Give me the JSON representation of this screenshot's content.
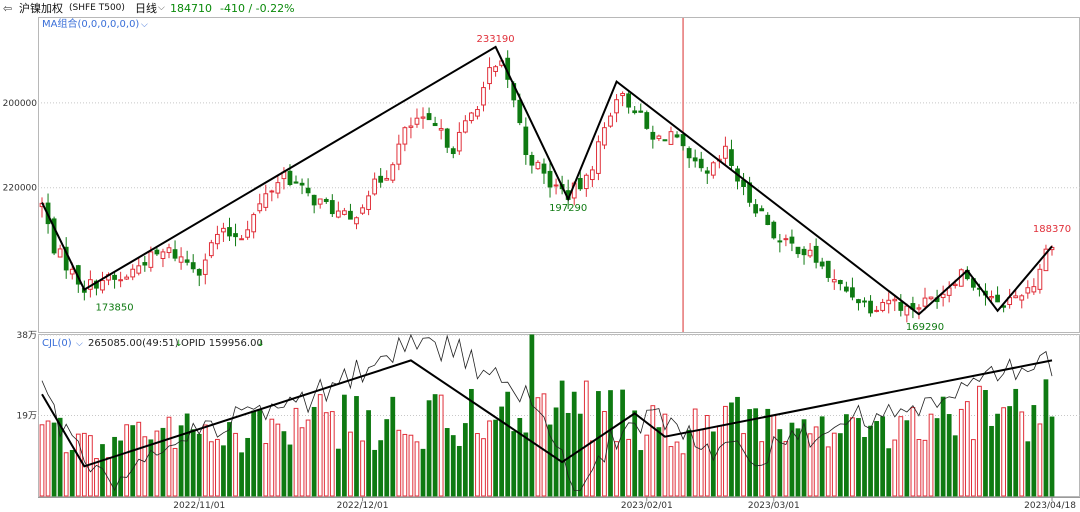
{
  "header": {
    "back_icon": "back-arrow-icon",
    "symbol_name": "沪镍加权",
    "symbol_code": "(SHFE T500)",
    "period": "日线",
    "period_dropdown_icon": "chevron-down-icon",
    "last_price": "184710",
    "change": "-410 / -0.22%"
  },
  "price_panel": {
    "indicator_label": "MA组合(0,0,0,0,0,0)",
    "y_ticks": [
      "220000",
      "200000"
    ]
  },
  "volume_panel": {
    "indicator_label": "CJL(0)",
    "volume_value": "265085.00(49:51)",
    "opid_value": "OPID 159956.00",
    "y_ticks": [
      "38万",
      "19万"
    ]
  },
  "x_axis": {
    "labels": [
      "2022/11/01",
      "2022/12/01",
      "2023/02/01",
      "2023/03/01",
      "2023/04/18"
    ]
  },
  "colors": {
    "up": "#e0303a",
    "down": "#0f7a12",
    "crosshair": "#e57373",
    "zigzag": "#000000",
    "grid": "#c8c8c8",
    "positive_text": "#0a8a0a",
    "negative_text": "#0a8a0a"
  },
  "chart_data": [
    {
      "type": "candlestick",
      "series_count": 168,
      "ylim": [
        166000,
        240000
      ],
      "y_ticks": [
        200000,
        220000
      ],
      "annotations": [
        {
          "text": "233190",
          "x_index": 75,
          "value": 233190,
          "position": "above"
        },
        {
          "text": "197290",
          "x_index": 87,
          "value": 197290,
          "position": "below"
        },
        {
          "text": "173850",
          "x_index": 12,
          "value": 173850,
          "position": "below"
        },
        {
          "text": "169290",
          "x_index": 146,
          "value": 169290,
          "position": "below"
        },
        {
          "text": "188370",
          "x_index": 167,
          "value": 188370,
          "position": "above"
        }
      ],
      "zigzag": [
        [
          0,
          196500
        ],
        [
          7,
          176000
        ],
        [
          75,
          233190
        ],
        [
          87,
          197290
        ],
        [
          95,
          225000
        ],
        [
          145,
          170200
        ],
        [
          153,
          180500
        ],
        [
          158,
          171000
        ],
        [
          167,
          186200
        ]
      ],
      "crosshair_index": 106,
      "x_tick_indices": [
        26,
        53,
        100,
        121,
        167
      ],
      "anchors": [
        [
          0,
          196000
        ],
        [
          2,
          186000
        ],
        [
          5,
          180000
        ],
        [
          7,
          176500
        ],
        [
          10,
          178500
        ],
        [
          13,
          178000
        ],
        [
          17,
          183000
        ],
        [
          21,
          185000
        ],
        [
          26,
          181000
        ],
        [
          29,
          189000
        ],
        [
          33,
          189000
        ],
        [
          37,
          198000
        ],
        [
          40,
          203500
        ],
        [
          44,
          198000
        ],
        [
          48,
          195000
        ],
        [
          51,
          192000
        ],
        [
          54,
          199000
        ],
        [
          57,
          203500
        ],
        [
          60,
          213000
        ],
        [
          62,
          216000
        ],
        [
          65,
          214000
        ],
        [
          68,
          209500
        ],
        [
          72,
          220000
        ],
        [
          74,
          227000
        ],
        [
          76,
          228500
        ],
        [
          78,
          221000
        ],
        [
          80,
          208500
        ],
        [
          84,
          201000
        ],
        [
          87,
          198500
        ],
        [
          90,
          201500
        ],
        [
          93,
          214000
        ],
        [
          95,
          222000
        ],
        [
          98,
          219000
        ],
        [
          101,
          211000
        ],
        [
          104,
          213000
        ],
        [
          107,
          206000
        ],
        [
          110,
          202500
        ],
        [
          113,
          208500
        ],
        [
          116,
          199000
        ],
        [
          119,
          194000
        ],
        [
          122,
          187000
        ],
        [
          125,
          186000
        ],
        [
          128,
          183000
        ],
        [
          131,
          177500
        ],
        [
          134,
          175000
        ],
        [
          137,
          172000
        ],
        [
          140,
          174000
        ],
        [
          143,
          171500
        ],
        [
          146,
          173000
        ],
        [
          149,
          175500
        ],
        [
          152,
          180500
        ],
        [
          155,
          176500
        ],
        [
          158,
          172000
        ],
        [
          161,
          174500
        ],
        [
          164,
          177500
        ],
        [
          166,
          185000
        ],
        [
          167,
          187500
        ]
      ]
    },
    {
      "type": "bar",
      "series_count": 168,
      "ylim": [
        0,
        380000
      ],
      "y_ticks": [
        190000,
        380000
      ],
      "volume_anchors": [
        [
          0,
          155000
        ],
        [
          8,
          140000
        ],
        [
          15,
          150000
        ],
        [
          25,
          165000
        ],
        [
          35,
          185000
        ],
        [
          45,
          200000
        ],
        [
          55,
          185000
        ],
        [
          65,
          195000
        ],
        [
          75,
          215000
        ],
        [
          85,
          240000
        ],
        [
          95,
          205000
        ],
        [
          105,
          160000
        ],
        [
          115,
          190000
        ],
        [
          125,
          175000
        ],
        [
          135,
          185000
        ],
        [
          145,
          195000
        ],
        [
          155,
          215000
        ],
        [
          167,
          235000
        ]
      ],
      "peak_bar": {
        "x_index": 81,
        "value": 380000
      },
      "oi_line_anchors": [
        [
          0,
          240000
        ],
        [
          5,
          120000
        ],
        [
          11,
          20000
        ],
        [
          20,
          120000
        ],
        [
          30,
          180000
        ],
        [
          42,
          210000
        ],
        [
          55,
          310000
        ],
        [
          62,
          370000
        ],
        [
          70,
          330000
        ],
        [
          80,
          230000
        ],
        [
          88,
          30000
        ],
        [
          95,
          140000
        ],
        [
          102,
          190000
        ],
        [
          110,
          120000
        ],
        [
          120,
          100000
        ],
        [
          130,
          170000
        ],
        [
          140,
          190000
        ],
        [
          150,
          230000
        ],
        [
          160,
          290000
        ],
        [
          167,
          310000
        ]
      ],
      "zigzag": [
        [
          0,
          240000
        ],
        [
          7,
          70000
        ],
        [
          61,
          320000
        ],
        [
          86,
          80000
        ],
        [
          98,
          195000
        ],
        [
          103,
          140000
        ],
        [
          167,
          320000
        ]
      ]
    }
  ]
}
